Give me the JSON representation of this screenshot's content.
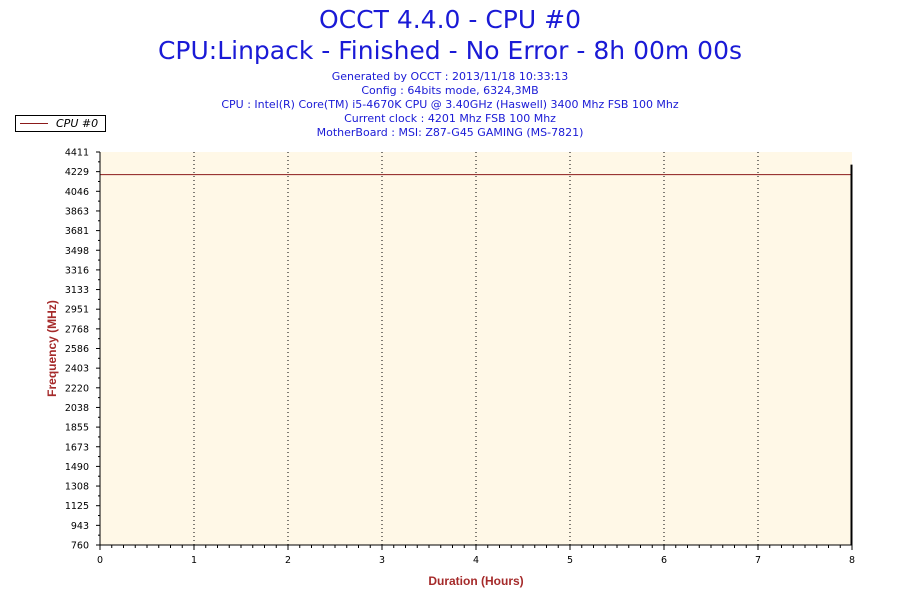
{
  "header": {
    "title": "OCCT 4.4.0 - CPU #0",
    "subtitle": "CPU:Linpack - Finished - No Error - 8h 00m 00s",
    "info_lines": [
      "Generated by OCCT : 2013/11/18 10:33:13",
      "Config : 64bits mode, 6324,3MB",
      "CPU : Intel(R) Core(TM) i5-4670K CPU @ 3.40GHz (Haswell) 3400 Mhz FSB 100 Mhz",
      "Current clock : 4201 Mhz FSB 100 Mhz",
      "MotherBoard : MSI: Z87-G45 GAMING (MS-7821)"
    ]
  },
  "legend": {
    "label": "CPU #0",
    "placement": "top-left"
  },
  "colors": {
    "series": "#8b1a1a",
    "plot_bg": "#fff8e7",
    "title": "#1a1ad6",
    "axis_title": "#a52a2a"
  },
  "chart_data": {
    "type": "line",
    "xlabel": "Duration (Hours)",
    "ylabel": "Frequency (MHz)",
    "xlim": [
      0,
      8
    ],
    "ylim": [
      760,
      4411
    ],
    "x_ticks": [
      "0",
      "1",
      "2",
      "3",
      "4",
      "5",
      "6",
      "7",
      "8"
    ],
    "y_ticks": [
      "760",
      "943",
      "1125",
      "1308",
      "1490",
      "1673",
      "1855",
      "2038",
      "2220",
      "2403",
      "2586",
      "2768",
      "2951",
      "3133",
      "3316",
      "3498",
      "3681",
      "3863",
      "4046",
      "4229",
      "4411"
    ],
    "grid": {
      "vertical": true,
      "horizontal": false
    },
    "series": [
      {
        "name": "CPU #0",
        "x": [
          0,
          8
        ],
        "y": [
          4201,
          4201
        ]
      }
    ]
  }
}
